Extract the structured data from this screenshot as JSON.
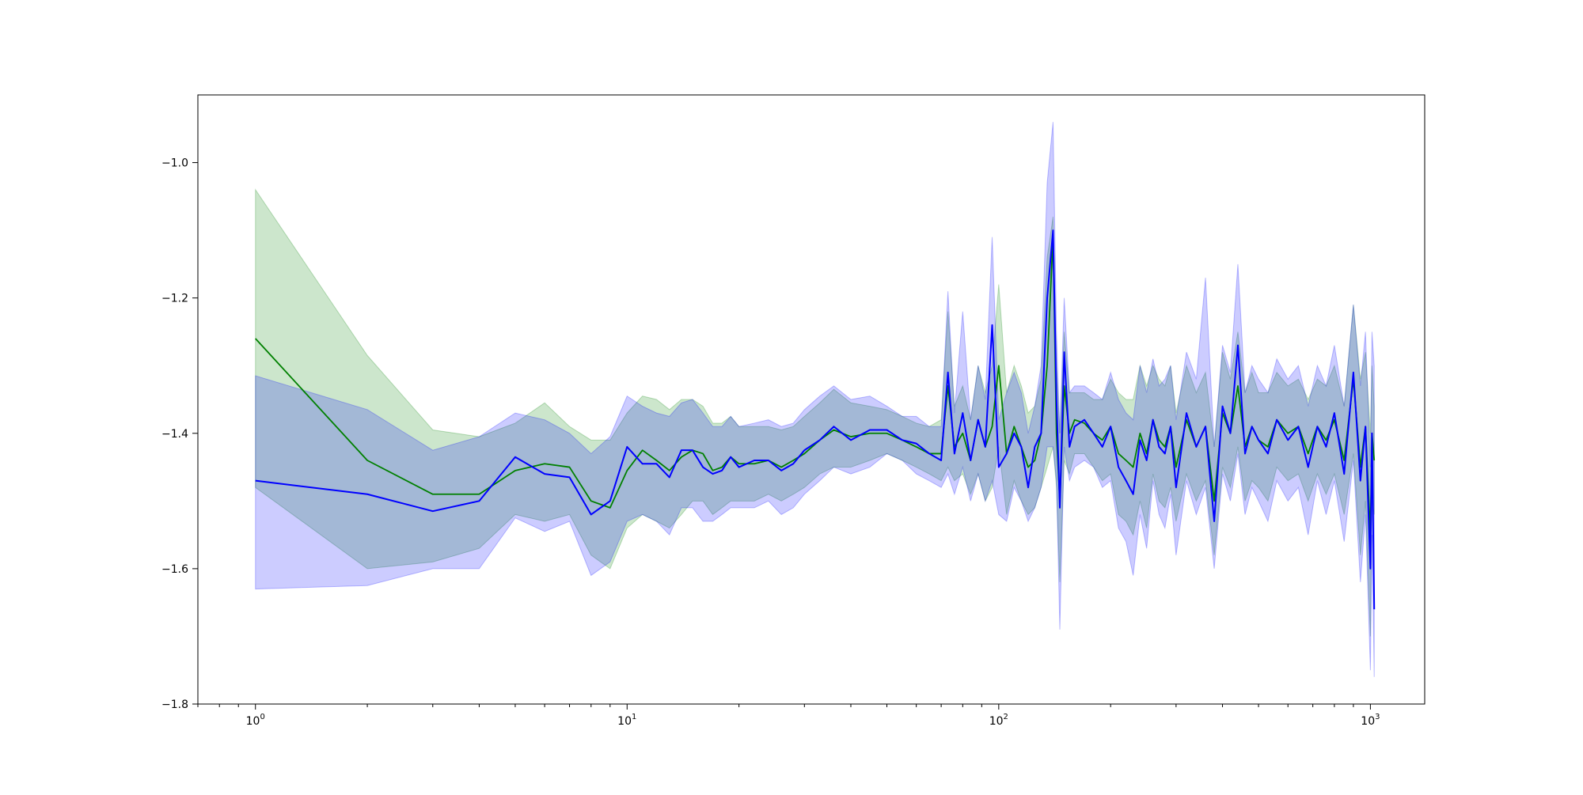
{
  "chart_data": {
    "type": "line",
    "title": "",
    "xlabel": "",
    "ylabel": "",
    "xscale": "log",
    "xlim": [
      0.7,
      1400
    ],
    "ylim": [
      -1.8,
      -0.9
    ],
    "grid": false,
    "legend": "none",
    "x_ticks": [
      1,
      10,
      100,
      1000
    ],
    "x_tick_labels": [
      "10^0",
      "10^1",
      "10^2",
      "10^3"
    ],
    "y_ticks": [
      -1.8,
      -1.6,
      -1.4,
      -1.2,
      -1.0
    ],
    "y_tick_labels": [
      "−1.8",
      "−1.6",
      "−1.4",
      "−1.2",
      "−1.0"
    ],
    "series": [
      {
        "color": "#008000",
        "band_color": "#008000",
        "band_opacity": 0.2,
        "x": [
          1,
          2,
          3,
          4,
          5,
          6,
          7,
          8,
          9,
          10,
          11,
          12,
          13,
          14,
          15,
          16,
          17,
          18,
          19,
          20,
          22,
          24,
          26,
          28,
          30,
          33,
          36,
          40,
          45,
          50,
          55,
          60,
          65,
          70,
          73,
          76,
          80,
          84,
          88,
          92,
          96,
          100,
          105,
          110,
          115,
          120,
          125,
          130,
          135,
          140,
          143,
          146,
          150,
          155,
          160,
          170,
          180,
          190,
          200,
          210,
          220,
          230,
          240,
          250,
          260,
          270,
          280,
          290,
          300,
          320,
          340,
          360,
          380,
          400,
          420,
          440,
          460,
          480,
          500,
          530,
          560,
          600,
          640,
          680,
          720,
          760,
          800,
          850,
          900,
          940,
          970,
          1000,
          1010,
          1024
        ],
        "y": [
          -1.26,
          -1.44,
          -1.49,
          -1.49,
          -1.455,
          -1.445,
          -1.45,
          -1.5,
          -1.51,
          -1.455,
          -1.425,
          -1.44,
          -1.455,
          -1.435,
          -1.425,
          -1.43,
          -1.455,
          -1.45,
          -1.435,
          -1.445,
          -1.445,
          -1.44,
          -1.45,
          -1.44,
          -1.43,
          -1.41,
          -1.395,
          -1.405,
          -1.4,
          -1.4,
          -1.41,
          -1.42,
          -1.43,
          -1.43,
          -1.33,
          -1.42,
          -1.4,
          -1.44,
          -1.38,
          -1.42,
          -1.39,
          -1.3,
          -1.43,
          -1.39,
          -1.42,
          -1.45,
          -1.44,
          -1.4,
          -1.3,
          -1.11,
          -1.4,
          -1.5,
          -1.33,
          -1.4,
          -1.38,
          -1.385,
          -1.4,
          -1.41,
          -1.39,
          -1.43,
          -1.44,
          -1.45,
          -1.4,
          -1.43,
          -1.38,
          -1.41,
          -1.42,
          -1.39,
          -1.45,
          -1.38,
          -1.42,
          -1.39,
          -1.5,
          -1.37,
          -1.4,
          -1.33,
          -1.42,
          -1.39,
          -1.41,
          -1.42,
          -1.38,
          -1.4,
          -1.39,
          -1.43,
          -1.39,
          -1.41,
          -1.38,
          -1.44,
          -1.32,
          -1.45,
          -1.39,
          -1.55,
          -1.4,
          -1.44
        ],
        "y_low": [
          -1.48,
          -1.6,
          -1.59,
          -1.57,
          -1.52,
          -1.53,
          -1.52,
          -1.58,
          -1.6,
          -1.54,
          -1.52,
          -1.53,
          -1.54,
          -1.52,
          -1.5,
          -1.5,
          -1.52,
          -1.51,
          -1.5,
          -1.5,
          -1.5,
          -1.49,
          -1.5,
          -1.49,
          -1.48,
          -1.46,
          -1.45,
          -1.45,
          -1.44,
          -1.43,
          -1.44,
          -1.45,
          -1.46,
          -1.47,
          -1.45,
          -1.47,
          -1.46,
          -1.49,
          -1.46,
          -1.5,
          -1.48,
          -1.42,
          -1.52,
          -1.47,
          -1.5,
          -1.52,
          -1.51,
          -1.48,
          -1.45,
          -1.42,
          -1.48,
          -1.62,
          -1.44,
          -1.46,
          -1.43,
          -1.43,
          -1.45,
          -1.47,
          -1.46,
          -1.52,
          -1.53,
          -1.55,
          -1.5,
          -1.54,
          -1.46,
          -1.5,
          -1.51,
          -1.48,
          -1.53,
          -1.46,
          -1.5,
          -1.47,
          -1.58,
          -1.45,
          -1.48,
          -1.42,
          -1.5,
          -1.47,
          -1.48,
          -1.5,
          -1.45,
          -1.47,
          -1.46,
          -1.5,
          -1.46,
          -1.49,
          -1.46,
          -1.52,
          -1.43,
          -1.58,
          -1.5,
          -1.7,
          -1.5,
          -1.52
        ],
        "y_high": [
          -1.04,
          -1.285,
          -1.395,
          -1.405,
          -1.385,
          -1.355,
          -1.39,
          -1.41,
          -1.41,
          -1.37,
          -1.345,
          -1.35,
          -1.365,
          -1.35,
          -1.35,
          -1.36,
          -1.385,
          -1.385,
          -1.375,
          -1.39,
          -1.39,
          -1.39,
          -1.395,
          -1.39,
          -1.375,
          -1.355,
          -1.335,
          -1.355,
          -1.36,
          -1.365,
          -1.375,
          -1.385,
          -1.39,
          -1.38,
          -1.22,
          -1.36,
          -1.33,
          -1.38,
          -1.3,
          -1.34,
          -1.3,
          -1.18,
          -1.34,
          -1.3,
          -1.33,
          -1.37,
          -1.36,
          -1.32,
          -1.14,
          -1.08,
          -1.3,
          -1.4,
          -1.25,
          -1.34,
          -1.34,
          -1.34,
          -1.35,
          -1.35,
          -1.32,
          -1.34,
          -1.35,
          -1.35,
          -1.3,
          -1.33,
          -1.3,
          -1.32,
          -1.33,
          -1.3,
          -1.37,
          -1.3,
          -1.34,
          -1.31,
          -1.42,
          -1.28,
          -1.32,
          -1.25,
          -1.34,
          -1.31,
          -1.34,
          -1.34,
          -1.31,
          -1.33,
          -1.32,
          -1.35,
          -1.32,
          -1.33,
          -1.3,
          -1.36,
          -1.21,
          -1.32,
          -1.28,
          -1.4,
          -1.3,
          -1.36
        ]
      },
      {
        "color": "#0000ff",
        "band_color": "#0000ff",
        "band_opacity": 0.2,
        "x": [
          1,
          2,
          3,
          4,
          5,
          6,
          7,
          8,
          9,
          10,
          11,
          12,
          13,
          14,
          15,
          16,
          17,
          18,
          19,
          20,
          22,
          24,
          26,
          28,
          30,
          33,
          36,
          40,
          45,
          50,
          55,
          60,
          65,
          70,
          73,
          76,
          80,
          84,
          88,
          92,
          96,
          100,
          105,
          110,
          115,
          120,
          125,
          130,
          135,
          140,
          143,
          146,
          150,
          155,
          160,
          170,
          180,
          190,
          200,
          210,
          220,
          230,
          240,
          250,
          260,
          270,
          280,
          290,
          300,
          320,
          340,
          360,
          380,
          400,
          420,
          440,
          460,
          480,
          500,
          530,
          560,
          600,
          640,
          680,
          720,
          760,
          800,
          850,
          900,
          940,
          970,
          1000,
          1010,
          1024
        ],
        "y": [
          -1.47,
          -1.49,
          -1.515,
          -1.5,
          -1.435,
          -1.46,
          -1.465,
          -1.52,
          -1.5,
          -1.42,
          -1.445,
          -1.445,
          -1.465,
          -1.425,
          -1.425,
          -1.45,
          -1.46,
          -1.455,
          -1.435,
          -1.45,
          -1.44,
          -1.44,
          -1.455,
          -1.445,
          -1.425,
          -1.41,
          -1.39,
          -1.41,
          -1.395,
          -1.395,
          -1.41,
          -1.415,
          -1.43,
          -1.44,
          -1.31,
          -1.43,
          -1.37,
          -1.44,
          -1.38,
          -1.42,
          -1.24,
          -1.45,
          -1.43,
          -1.4,
          -1.42,
          -1.48,
          -1.42,
          -1.4,
          -1.2,
          -1.1,
          -1.35,
          -1.51,
          -1.28,
          -1.42,
          -1.39,
          -1.38,
          -1.4,
          -1.42,
          -1.39,
          -1.45,
          -1.47,
          -1.49,
          -1.41,
          -1.44,
          -1.38,
          -1.42,
          -1.43,
          -1.39,
          -1.48,
          -1.37,
          -1.42,
          -1.39,
          -1.53,
          -1.36,
          -1.4,
          -1.27,
          -1.43,
          -1.39,
          -1.41,
          -1.43,
          -1.38,
          -1.41,
          -1.39,
          -1.45,
          -1.39,
          -1.42,
          -1.37,
          -1.46,
          -1.31,
          -1.47,
          -1.39,
          -1.6,
          -1.4,
          -1.66
        ],
        "y_low": [
          -1.63,
          -1.625,
          -1.6,
          -1.6,
          -1.525,
          -1.545,
          -1.53,
          -1.61,
          -1.59,
          -1.53,
          -1.52,
          -1.53,
          -1.55,
          -1.51,
          -1.51,
          -1.53,
          -1.53,
          -1.52,
          -1.51,
          -1.51,
          -1.51,
          -1.5,
          -1.52,
          -1.51,
          -1.49,
          -1.47,
          -1.45,
          -1.46,
          -1.45,
          -1.43,
          -1.44,
          -1.46,
          -1.47,
          -1.48,
          -1.46,
          -1.49,
          -1.45,
          -1.5,
          -1.46,
          -1.5,
          -1.47,
          -1.52,
          -1.53,
          -1.48,
          -1.5,
          -1.53,
          -1.51,
          -1.48,
          -1.42,
          -1.42,
          -1.47,
          -1.69,
          -1.42,
          -1.47,
          -1.45,
          -1.44,
          -1.45,
          -1.48,
          -1.47,
          -1.54,
          -1.56,
          -1.61,
          -1.52,
          -1.57,
          -1.47,
          -1.52,
          -1.54,
          -1.49,
          -1.58,
          -1.47,
          -1.52,
          -1.48,
          -1.6,
          -1.46,
          -1.5,
          -1.43,
          -1.52,
          -1.48,
          -1.5,
          -1.53,
          -1.47,
          -1.5,
          -1.48,
          -1.55,
          -1.47,
          -1.52,
          -1.47,
          -1.56,
          -1.44,
          -1.62,
          -1.52,
          -1.75,
          -1.55,
          -1.76
        ],
        "y_high": [
          -1.315,
          -1.365,
          -1.425,
          -1.405,
          -1.37,
          -1.38,
          -1.4,
          -1.43,
          -1.405,
          -1.345,
          -1.36,
          -1.37,
          -1.375,
          -1.355,
          -1.35,
          -1.37,
          -1.39,
          -1.39,
          -1.375,
          -1.39,
          -1.385,
          -1.38,
          -1.39,
          -1.385,
          -1.365,
          -1.345,
          -1.33,
          -1.35,
          -1.345,
          -1.36,
          -1.375,
          -1.375,
          -1.39,
          -1.39,
          -1.19,
          -1.37,
          -1.22,
          -1.38,
          -1.3,
          -1.35,
          -1.11,
          -1.38,
          -1.34,
          -1.31,
          -1.34,
          -1.4,
          -1.36,
          -1.3,
          -1.03,
          -0.94,
          -1.25,
          -1.4,
          -1.2,
          -1.34,
          -1.33,
          -1.33,
          -1.34,
          -1.35,
          -1.31,
          -1.35,
          -1.37,
          -1.38,
          -1.3,
          -1.34,
          -1.29,
          -1.33,
          -1.32,
          -1.3,
          -1.38,
          -1.28,
          -1.32,
          -1.17,
          -1.42,
          -1.27,
          -1.31,
          -1.15,
          -1.34,
          -1.3,
          -1.32,
          -1.34,
          -1.29,
          -1.32,
          -1.3,
          -1.36,
          -1.3,
          -1.33,
          -1.27,
          -1.36,
          -1.21,
          -1.33,
          -1.25,
          -1.45,
          -1.25,
          -1.3
        ]
      }
    ]
  }
}
